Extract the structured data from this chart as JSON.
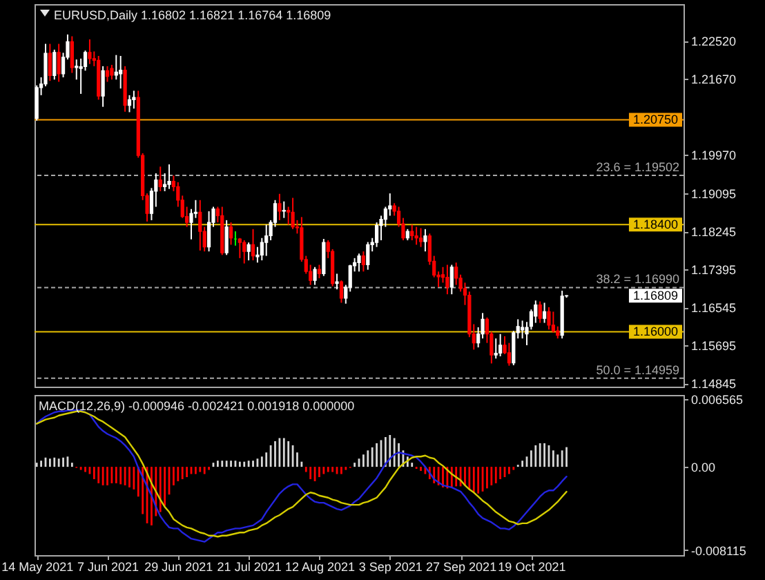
{
  "chart_data": [
    {
      "type": "candlestick",
      "title": "EURUSD,Daily 1.16802 1.16821 1.16764 1.16809",
      "categories": [
        null,
        null,
        null,
        null,
        null,
        null,
        null,
        null,
        null,
        null,
        null,
        null,
        null,
        null,
        null,
        null,
        null,
        null,
        null,
        null,
        null,
        null,
        null,
        null,
        null,
        null,
        null,
        null,
        null,
        null,
        null,
        null,
        null,
        null,
        null,
        null,
        null,
        null,
        null,
        null,
        null,
        null,
        null,
        null,
        null,
        null,
        null,
        null,
        null,
        null,
        null,
        null,
        null,
        null,
        null,
        null,
        null,
        null,
        null,
        null,
        null,
        null,
        null,
        null,
        null,
        null,
        null,
        null,
        null,
        null,
        null,
        null,
        null,
        null,
        null,
        null,
        null,
        null,
        null,
        null,
        null,
        null,
        null,
        null,
        null,
        null,
        null,
        null,
        null,
        null,
        null,
        null,
        null,
        null,
        null,
        null,
        null,
        null,
        null,
        null,
        null,
        null,
        null,
        null,
        null,
        null,
        null,
        null,
        null,
        null,
        null,
        null,
        null,
        null,
        null,
        null,
        null,
        null,
        null,
        null,
        null,
        null,
        null,
        null,
        null,
        null,
        null,
        null,
        null,
        null,
        null,
        null,
        null,
        null,
        null,
        null,
        null,
        null,
        null,
        null,
        null,
        null,
        null,
        null,
        null,
        null,
        null
      ],
      "ohlc": [
        [
          1.2078,
          1.2152,
          1.2073,
          1.2147
        ],
        [
          1.2147,
          1.217,
          1.213,
          1.2155
        ],
        [
          1.2155,
          1.2245,
          1.215,
          1.2224
        ],
        [
          1.2224,
          1.2245,
          1.2162,
          1.2174
        ],
        [
          1.2174,
          1.2232,
          1.2165,
          1.2226
        ],
        [
          1.2226,
          1.2245,
          1.216,
          1.2178
        ],
        [
          1.2178,
          1.2225,
          1.217,
          1.2215
        ],
        [
          1.2215,
          1.2266,
          1.221,
          1.225
        ],
        [
          1.225,
          1.2262,
          1.218,
          1.2192
        ],
        [
          1.2192,
          1.221,
          1.2165,
          1.2195
        ],
        [
          1.219,
          1.2212,
          1.2133,
          1.2194
        ],
        [
          1.2194,
          1.223,
          1.2185,
          1.2226
        ],
        [
          1.2226,
          1.2255,
          1.22,
          1.2212
        ],
        [
          1.2212,
          1.2228,
          1.2195,
          1.2208
        ],
        [
          1.2208,
          1.2218,
          1.212,
          1.2128
        ],
        [
          1.2128,
          1.2195,
          1.2104,
          1.2185
        ],
        [
          1.2185,
          1.2195,
          1.216,
          1.2172
        ],
        [
          1.219,
          1.2198,
          1.2165,
          1.2175
        ],
        [
          1.2175,
          1.222,
          1.2165,
          1.2182
        ],
        [
          1.2178,
          1.2218,
          1.2145,
          1.2186
        ],
        [
          1.2186,
          1.2195,
          1.2093,
          1.2107
        ],
        [
          1.2107,
          1.213,
          1.2092,
          1.212
        ],
        [
          1.212,
          1.214,
          1.21,
          1.2125
        ],
        [
          1.2125,
          1.214,
          1.199,
          1.1995
        ],
        [
          1.1995,
          1.2,
          1.1895,
          1.1905
        ],
        [
          1.1905,
          1.191,
          1.1847,
          1.1865
        ],
        [
          1.1865,
          1.1922,
          1.185,
          1.1915
        ],
        [
          1.1915,
          1.1955,
          1.188,
          1.194
        ],
        [
          1.194,
          1.197,
          1.1915,
          1.1925
        ],
        [
          1.1925,
          1.1955,
          1.1915,
          1.193
        ],
        [
          1.193,
          1.1975,
          1.192,
          1.1937
        ],
        [
          1.1937,
          1.195,
          1.1915,
          1.1925
        ],
        [
          1.1925,
          1.1935,
          1.188,
          1.1895
        ],
        [
          1.1895,
          1.1905,
          1.1855,
          1.1858
        ],
        [
          1.1858,
          1.188,
          1.1835,
          1.1845
        ],
        [
          1.1845,
          1.1875,
          1.1807,
          1.1865
        ],
        [
          1.1865,
          1.1895,
          1.1855,
          1.1868
        ],
        [
          1.1868,
          1.1895,
          1.1782,
          1.1825
        ],
        [
          1.1825,
          1.1835,
          1.178,
          1.179
        ],
        [
          1.179,
          1.187,
          1.178,
          1.1845
        ],
        [
          1.1845,
          1.188,
          1.1835,
          1.1875
        ],
        [
          1.1875,
          1.188,
          1.1845,
          1.186
        ],
        [
          1.186,
          1.188,
          1.1772,
          1.1777
        ],
        [
          1.1777,
          1.185,
          1.1772,
          1.1835
        ],
        [
          1.1835,
          1.1845,
          1.1795,
          1.181
        ],
        [
          1.1808,
          1.1825,
          1.1793,
          1.1808
        ],
        [
          1.1808,
          1.181,
          1.1765,
          1.18
        ],
        [
          1.18,
          1.1805,
          1.1753,
          1.178
        ],
        [
          1.178,
          1.18,
          1.176,
          1.1795
        ],
        [
          1.1795,
          1.183,
          1.176,
          1.177
        ],
        [
          1.1768,
          1.179,
          1.1755,
          1.1772
        ],
        [
          1.1772,
          1.181,
          1.176,
          1.18
        ],
        [
          1.18,
          1.184,
          1.177,
          1.1815
        ],
        [
          1.1815,
          1.185,
          1.1805,
          1.1845
        ],
        [
          1.1845,
          1.1895,
          1.1835,
          1.1887
        ],
        [
          1.1887,
          1.1909,
          1.185,
          1.187
        ],
        [
          1.187,
          1.1892,
          1.1855,
          1.1872
        ],
        [
          1.1872,
          1.188,
          1.184,
          1.1868
        ],
        [
          1.1868,
          1.19,
          1.183,
          1.1835
        ],
        [
          1.1835,
          1.185,
          1.182,
          1.1833
        ],
        [
          1.1833,
          1.1857,
          1.1757,
          1.1762
        ],
        [
          1.1762,
          1.177,
          1.173,
          1.1735
        ],
        [
          1.1735,
          1.175,
          1.1705,
          1.1715
        ],
        [
          1.1715,
          1.1745,
          1.1705,
          1.174
        ],
        [
          1.174,
          1.175,
          1.172,
          1.173
        ],
        [
          1.173,
          1.1808,
          1.1725,
          1.18
        ],
        [
          1.18,
          1.1805,
          1.1765,
          1.178
        ],
        [
          1.178,
          1.1785,
          1.1702,
          1.1708
        ],
        [
          1.1708,
          1.173,
          1.1695,
          1.1712
        ],
        [
          1.1712,
          1.1715,
          1.1665,
          1.1675
        ],
        [
          1.1675,
          1.1705,
          1.1663,
          1.17
        ],
        [
          1.17,
          1.175,
          1.169,
          1.1748
        ],
        [
          1.1748,
          1.1765,
          1.1735,
          1.1755
        ],
        [
          1.1755,
          1.1775,
          1.1735,
          1.177
        ],
        [
          1.177,
          1.178,
          1.1735,
          1.175
        ],
        [
          1.175,
          1.1801,
          1.1739,
          1.1795
        ],
        [
          1.1795,
          1.181,
          1.178,
          1.18
        ],
        [
          1.18,
          1.1845,
          1.179,
          1.1838
        ],
        [
          1.1838,
          1.186,
          1.1805,
          1.1852
        ],
        [
          1.1852,
          1.188,
          1.1835,
          1.1875
        ],
        [
          1.1875,
          1.191,
          1.186,
          1.1882
        ],
        [
          1.1882,
          1.1888,
          1.186,
          1.187
        ],
        [
          1.187,
          1.188,
          1.1835,
          1.1842
        ],
        [
          1.1842,
          1.1855,
          1.1805,
          1.181
        ],
        [
          1.181,
          1.183,
          1.1805,
          1.1825
        ],
        [
          1.1825,
          1.184,
          1.1805,
          1.1815
        ],
        [
          1.1815,
          1.1835,
          1.1795,
          1.181
        ],
        [
          1.181,
          1.1832,
          1.179,
          1.1802
        ],
        [
          1.1802,
          1.183,
          1.178,
          1.1815
        ],
        [
          1.1815,
          1.182,
          1.175,
          1.1758
        ],
        [
          1.1758,
          1.177,
          1.1722,
          1.1727
        ],
        [
          1.1727,
          1.1735,
          1.17,
          1.1723
        ],
        [
          1.1728,
          1.1745,
          1.171,
          1.1722
        ],
        [
          1.1722,
          1.175,
          1.1684,
          1.17
        ],
        [
          1.17,
          1.175,
          1.1684,
          1.1745
        ],
        [
          1.1745,
          1.1755,
          1.1705,
          1.172
        ],
        [
          1.172,
          1.1728,
          1.169,
          1.1697
        ],
        [
          1.1697,
          1.171,
          1.166,
          1.1682
        ],
        [
          1.1682,
          1.169,
          1.1588,
          1.1595
        ],
        [
          1.1595,
          1.1617,
          1.156,
          1.1575
        ],
        [
          1.1575,
          1.161,
          1.1565,
          1.1595
        ],
        [
          1.1595,
          1.1642,
          1.1585,
          1.1628
        ],
        [
          1.1628,
          1.1632,
          1.1575,
          1.1595
        ],
        [
          1.1595,
          1.16,
          1.1529,
          1.1548
        ],
        [
          1.1548,
          1.1585,
          1.154,
          1.1552
        ],
        [
          1.1552,
          1.1595,
          1.1545,
          1.157
        ],
        [
          1.157,
          1.159,
          1.155,
          1.1553
        ],
        [
          1.1553,
          1.1575,
          1.1524,
          1.153
        ],
        [
          1.153,
          1.1602,
          1.1525,
          1.1598
        ],
        [
          1.1598,
          1.1628,
          1.1585,
          1.1612
        ],
        [
          1.1604,
          1.1625,
          1.1585,
          1.161
        ],
        [
          1.1595,
          1.1622,
          1.157,
          1.161
        ],
        [
          1.1612,
          1.165,
          1.1605,
          1.1645
        ],
        [
          1.1635,
          1.167,
          1.162,
          1.166
        ],
        [
          1.166,
          1.1668,
          1.162,
          1.163
        ],
        [
          1.163,
          1.1665,
          1.162,
          1.1645
        ],
        [
          1.1645,
          1.1655,
          1.1605,
          1.1615
        ],
        [
          1.1615,
          1.1645,
          1.1598,
          1.1602
        ],
        [
          1.1602,
          1.1612,
          1.1585,
          1.1592
        ],
        [
          1.1592,
          1.1692,
          1.1585,
          1.168
        ],
        [
          1.16802,
          1.16821,
          1.16764,
          1.16809
        ],
        null,
        null,
        null,
        null,
        null,
        null,
        null,
        null,
        null,
        null,
        null,
        null,
        null,
        null,
        null,
        null,
        null,
        null,
        null,
        null,
        null,
        null,
        null,
        null,
        null,
        null
      ],
      "colors": [
        "#ffffff",
        "#ffffff",
        "#ffffff",
        "#ff0000",
        "#ffffff",
        "#ff0000",
        "#ffffff",
        "#ffffff",
        "#ff0000",
        "#ffffff",
        "#ffffff",
        "#ffffff",
        "#ff0000",
        "#ff0000",
        "#ff0000",
        "#ffffff",
        "#ff0000",
        "#ff0000",
        "#ffffff",
        "#ffffff",
        "#ff0000",
        "#ffffff",
        "#ffffff",
        "#ff0000",
        "#ff0000",
        "#ff0000",
        "#ffffff",
        "#ffffff",
        "#ff0000",
        "#ffffff",
        "#ffffff",
        "#ff0000",
        "#ff0000",
        "#ff0000",
        "#ff0000",
        "#ffffff",
        "#ffffff",
        "#ff0000",
        "#ff0000",
        "#ffffff",
        "#ffffff",
        "#ff0000",
        "#ff0000",
        "#ffffff",
        "#ff0000",
        "#00ff00",
        "#ff0000",
        "#ff0000",
        "#ffffff",
        "#ff0000",
        "#ffffff",
        "#ffffff",
        "#ffffff",
        "#ffffff",
        "#ffffff",
        "#ff0000",
        "#ffffff",
        "#ff0000",
        "#ff0000",
        "#ff0000",
        "#ff0000",
        "#ff0000",
        "#ff0000",
        "#ffffff",
        "#ff0000",
        "#ffffff",
        "#ff0000",
        "#ff0000",
        "#ffffff",
        "#ff0000",
        "#ffffff",
        "#ffffff",
        "#ffffff",
        "#ffffff",
        "#ff0000",
        "#ffffff",
        "#ffffff",
        "#ffffff",
        "#ffffff",
        "#ffffff",
        "#ffffff",
        "#ff0000",
        "#ff0000",
        "#ff0000",
        "#ffffff",
        "#ff0000",
        "#ff0000",
        "#ff0000",
        "#ffffff",
        "#ff0000",
        "#ff0000",
        "#ff0000",
        "#ff0000",
        "#ff0000",
        "#ffffff",
        "#ff0000",
        "#ff0000",
        "#ff0000",
        "#ff0000",
        "#ff0000",
        "#ffffff",
        "#ffffff",
        "#ff0000",
        "#ff0000",
        "#ffffff",
        "#ffffff",
        "#ff0000",
        "#ff0000",
        "#ffffff",
        "#ffffff",
        "#ffffff",
        "#ffffff",
        "#ffffff",
        "#ffffff",
        "#ff0000",
        "#ffffff",
        "#ff0000",
        "#ff0000",
        "#ff0000",
        "#ffffff",
        "#ffffff",
        null,
        null,
        null,
        null,
        null,
        null,
        null,
        null,
        null,
        null,
        null,
        null,
        null,
        null,
        null,
        null,
        null,
        null,
        null,
        null,
        null,
        null,
        null,
        null,
        null,
        null
      ],
      "ylim": [
        1.1477,
        1.2334
      ],
      "yticks": [
        {
          "value": 1.2252,
          "label": "1.22520"
        },
        {
          "value": 1.2167,
          "label": "1.21670"
        },
        {
          "value": 1.1997,
          "label": "1.19970"
        },
        1.19095,
        1.18245,
        1.17395,
        1.16545,
        1.15695,
        1.14845
      ],
      "ref_lines": [
        {
          "axis": "y",
          "value": 1.2075,
          "label": "1.20750",
          "color": "#f59b00"
        },
        {
          "axis": "y",
          "value": 1.184,
          "label": "1.18400",
          "color": "#e8c000"
        },
        {
          "axis": "y",
          "value": 1.16,
          "label": "1.16000",
          "color": "#e8c000"
        },
        {
          "axis": "y",
          "value": 1.19502,
          "label": "23.6 = 1.19502",
          "color": "#a8a8a8",
          "line_style": "dashed"
        },
        {
          "axis": "y",
          "value": 1.1699,
          "label": "38.2 = 1.16990",
          "color": "#a8a8a8",
          "line_style": "dashed"
        },
        {
          "axis": "y",
          "value": 1.14959,
          "label": "50.0 = 1.14959",
          "color": "#a8a8a8",
          "line_style": "dashed"
        }
      ],
      "annotations": [
        "1.16809"
      ],
      "tick_labels": "y"
    },
    {
      "type": "line",
      "title": "MACD(12,26,9) -0.000946 -0.002421 0.001918 0.000000",
      "categories": [
        "14 May 2021",
        null,
        null,
        null,
        null,
        null,
        null,
        null,
        null,
        null,
        null,
        null,
        null,
        null,
        null,
        null,
        "7 Jun 2021",
        null,
        null,
        null,
        null,
        null,
        null,
        null,
        null,
        null,
        null,
        null,
        null,
        null,
        null,
        null,
        "29 Jun 2021",
        null,
        null,
        null,
        null,
        null,
        null,
        null,
        null,
        null,
        null,
        null,
        null,
        null,
        null,
        null,
        "21 Jul 2021",
        null,
        null,
        null,
        null,
        null,
        null,
        null,
        null,
        null,
        null,
        null,
        null,
        null,
        null,
        null,
        "12 Aug 2021",
        null,
        null,
        null,
        null,
        null,
        null,
        null,
        null,
        null,
        null,
        null,
        null,
        null,
        null,
        null,
        "3 Sep 2021",
        null,
        null,
        null,
        null,
        null,
        null,
        null,
        null,
        null,
        null,
        null,
        null,
        null,
        null,
        null,
        "27 Sep 2021",
        null,
        null,
        null,
        null,
        null,
        null,
        null,
        null,
        null,
        null,
        null,
        null,
        null,
        null,
        null,
        "19 Oct 2021",
        null,
        null,
        null,
        null,
        null,
        null,
        null,
        null,
        null,
        null,
        null,
        null,
        null,
        null,
        null,
        null,
        null,
        null,
        null,
        null,
        null,
        null,
        null,
        null,
        null,
        null,
        null,
        null,
        null,
        null,
        null,
        null,
        null,
        null
      ],
      "series": [
        {
          "type": "bar",
          "color": "#d8d8d8",
          "values": [
            0.0004,
            0.0006,
            0.0009,
            0.0008,
            0.0009,
            0.0008,
            0.0009,
            0.001,
            0.0004,
            null,
            null,
            null,
            null,
            null,
            null,
            null,
            null,
            null,
            null,
            null,
            null,
            null,
            null,
            null,
            null,
            null,
            null,
            null,
            null,
            null,
            null,
            null,
            null,
            null,
            null,
            null,
            null,
            null,
            null,
            null,
            0.0004,
            0.0006,
            0.0006,
            0.0006,
            0.0006,
            0.0006,
            0.0005,
            0.0005,
            0.0006,
            0.0006,
            0.0008,
            0.001,
            0.0014,
            0.0021,
            0.0025,
            0.0028,
            0.0028,
            0.0025,
            0.0021,
            0.0014,
            0.0005,
            null,
            null,
            null,
            null,
            null,
            null,
            null,
            null,
            null,
            null,
            null,
            0.0004,
            0.0008,
            0.0012,
            0.0016,
            0.0019,
            0.0023,
            0.0026,
            0.0029,
            0.0031,
            0.0028,
            0.0023,
            0.0016,
            0.001,
            0.0004,
            null,
            null,
            null,
            null,
            null,
            null,
            null,
            null,
            null,
            null,
            null,
            null,
            null,
            null,
            null,
            null,
            null,
            null,
            null,
            null,
            null,
            null,
            null,
            0.0002,
            0.0006,
            0.001,
            0.0016,
            0.0021,
            0.0023,
            0.0023,
            0.0021,
            0.0016,
            0.0012,
            0.0016,
            0.001918,
            null,
            null,
            null,
            null,
            null,
            null,
            null,
            null,
            null,
            null,
            null,
            null,
            null,
            null,
            null,
            null,
            null,
            null,
            null,
            null,
            null,
            null,
            null,
            null,
            null,
            null
          ]
        },
        {
          "type": "bar",
          "color": "#ff0000",
          "values": [
            null,
            null,
            null,
            null,
            null,
            null,
            null,
            null,
            null,
            -0.0001,
            -0.0003,
            -0.0005,
            -0.0007,
            -0.0012,
            -0.0016,
            -0.0018,
            -0.0018,
            -0.0016,
            -0.0016,
            -0.0017,
            -0.0018,
            -0.002,
            -0.0022,
            -0.0029,
            -0.0046,
            -0.0055,
            -0.0057,
            -0.0048,
            -0.0044,
            -0.0038,
            -0.0027,
            -0.0018,
            -0.0014,
            -0.0012,
            -0.001,
            -0.0007,
            -0.0007,
            -0.0005,
            -0.0007,
            -0.0003,
            null,
            null,
            null,
            null,
            null,
            null,
            null,
            null,
            null,
            null,
            null,
            null,
            null,
            null,
            null,
            null,
            null,
            null,
            null,
            null,
            null,
            -0.0005,
            -0.0012,
            -0.0014,
            -0.001,
            -0.0007,
            -0.0005,
            -0.0005,
            -0.0007,
            -0.0007,
            -0.0003,
            -0.0001,
            null,
            null,
            null,
            null,
            null,
            null,
            null,
            null,
            null,
            null,
            null,
            null,
            null,
            null,
            -0.0002,
            -0.0004,
            -0.0007,
            -0.0012,
            -0.0016,
            -0.0018,
            -0.002,
            -0.0021,
            -0.002,
            -0.0019,
            -0.0019,
            -0.0018,
            -0.0022,
            -0.0025,
            -0.0026,
            -0.0024,
            -0.0021,
            -0.0018,
            -0.0016,
            -0.0012,
            -0.001,
            -0.0007,
            -0.0003,
            null,
            null,
            null,
            null,
            null,
            null,
            null,
            null,
            null,
            null,
            null,
            null,
            null,
            null,
            null,
            null,
            null,
            null,
            null,
            null,
            null,
            null,
            null,
            null,
            null,
            null,
            null,
            null,
            null,
            null,
            null,
            null,
            null,
            null,
            null,
            null,
            null,
            null
          ]
        },
        {
          "type": "line",
          "color": "#2424e0",
          "values": [
            0.0042,
            0.0046,
            0.0049,
            0.0051,
            0.0053,
            0.0054,
            0.0054,
            0.0055,
            0.0055,
            0.0055,
            0.0055,
            0.0053,
            0.0051,
            0.0045,
            0.0039,
            0.0035,
            0.0032,
            0.003,
            0.0028,
            0.0025,
            0.0021,
            0.0016,
            0.001,
            -0.0001,
            -0.001,
            -0.0019,
            -0.0028,
            -0.0039,
            -0.0048,
            -0.0054,
            -0.0059,
            -0.006,
            -0.006,
            -0.0064,
            -0.0067,
            -0.007,
            -0.0071,
            -0.0072,
            -0.0073,
            -0.007,
            -0.0067,
            -0.0064,
            -0.0064,
            -0.0062,
            -0.0061,
            -0.006,
            -0.006,
            -0.0059,
            -0.0058,
            -0.0057,
            -0.0054,
            -0.0051,
            -0.0044,
            -0.0038,
            -0.0032,
            -0.0026,
            -0.0022,
            -0.0019,
            -0.0017,
            -0.0017,
            -0.0022,
            -0.0027,
            -0.0031,
            -0.0034,
            -0.0035,
            -0.0035,
            -0.0037,
            -0.0039,
            -0.0041,
            -0.0042,
            -0.004,
            -0.0038,
            -0.0034,
            -0.0031,
            -0.0026,
            -0.0021,
            -0.0016,
            -0.0011,
            -0.0004,
            0.0003,
            0.0008,
            0.0012,
            0.0014,
            0.0013,
            0.0012,
            0.0011,
            0.0009,
            0.0005,
            0.0,
            -0.0006,
            -0.0012,
            -0.0015,
            -0.0018,
            -0.0019,
            -0.002,
            -0.0022,
            -0.0024,
            -0.0029,
            -0.0035,
            -0.004,
            -0.0046,
            -0.005,
            -0.0052,
            -0.0054,
            -0.0057,
            -0.006,
            -0.006,
            -0.0061,
            -0.0058,
            -0.0054,
            -0.0049,
            -0.0044,
            -0.0039,
            -0.0034,
            -0.0029,
            -0.0025,
            -0.0023,
            -0.0023,
            -0.0019,
            -0.0014,
            -0.000946,
            null,
            null,
            null,
            null,
            null,
            null,
            null,
            null,
            null,
            null,
            null,
            null,
            null,
            null,
            null,
            null,
            null,
            null,
            null,
            null,
            null,
            null,
            null,
            null,
            null,
            null
          ]
        },
        {
          "type": "line",
          "color": "#d4cc00",
          "values": [
            0.0042,
            0.0044,
            0.0046,
            0.0047,
            0.0048,
            0.005,
            0.0051,
            0.0052,
            0.0053,
            0.0054,
            0.0054,
            0.0053,
            0.0051,
            0.0049,
            0.0046,
            0.0044,
            0.0041,
            0.0038,
            0.0035,
            0.0032,
            0.0029,
            0.0023,
            0.0017,
            0.0011,
            0.0003,
            -0.0006,
            -0.0016,
            -0.0024,
            -0.0032,
            -0.0039,
            -0.0044,
            -0.0051,
            -0.0054,
            -0.0057,
            -0.0059,
            -0.006,
            -0.0062,
            -0.0064,
            -0.0065,
            -0.0067,
            -0.0067,
            -0.0068,
            -0.0067,
            -0.0067,
            -0.0066,
            -0.0065,
            -0.0064,
            -0.0064,
            -0.0062,
            -0.0061,
            -0.006,
            -0.0057,
            -0.0055,
            -0.0052,
            -0.0049,
            -0.0047,
            -0.0044,
            -0.0041,
            -0.0039,
            -0.0035,
            -0.0031,
            -0.0027,
            -0.0025,
            -0.0026,
            -0.0028,
            -0.0029,
            -0.003,
            -0.0032,
            -0.0033,
            -0.0035,
            -0.0036,
            -0.0037,
            -0.0037,
            -0.0037,
            -0.0035,
            -0.0034,
            -0.0032,
            -0.003,
            -0.0025,
            -0.002,
            -0.0013,
            -0.0007,
            -0.0001,
            0.0003,
            0.0006,
            0.0009,
            0.001,
            0.001,
            0.0011,
            0.0009,
            0.0008,
            0.0004,
            0.0001,
            -0.0003,
            -0.0007,
            -0.001,
            -0.0013,
            -0.0018,
            -0.0022,
            -0.0025,
            -0.0029,
            -0.0033,
            -0.0036,
            -0.004,
            -0.0044,
            -0.0047,
            -0.005,
            -0.0053,
            -0.0054,
            -0.0056,
            -0.0055,
            -0.0055,
            -0.0053,
            -0.0051,
            -0.0048,
            -0.0045,
            -0.0042,
            -0.0038,
            -0.0034,
            -0.0029,
            -0.002421,
            null,
            null,
            null,
            null,
            null,
            null,
            null,
            null,
            null,
            null,
            null,
            null,
            null,
            null,
            null,
            null,
            null,
            null,
            null,
            null,
            null,
            null,
            null,
            null,
            null,
            null
          ]
        }
      ],
      "ylim": [
        -0.0086,
        0.007
      ],
      "yticks": [
        {
          "value": 0.006565,
          "label": "0.006565"
        },
        {
          "value": 0,
          "label": "0.00"
        },
        {
          "value": -0.008115,
          "label": "-0.008115"
        }
      ]
    }
  ]
}
